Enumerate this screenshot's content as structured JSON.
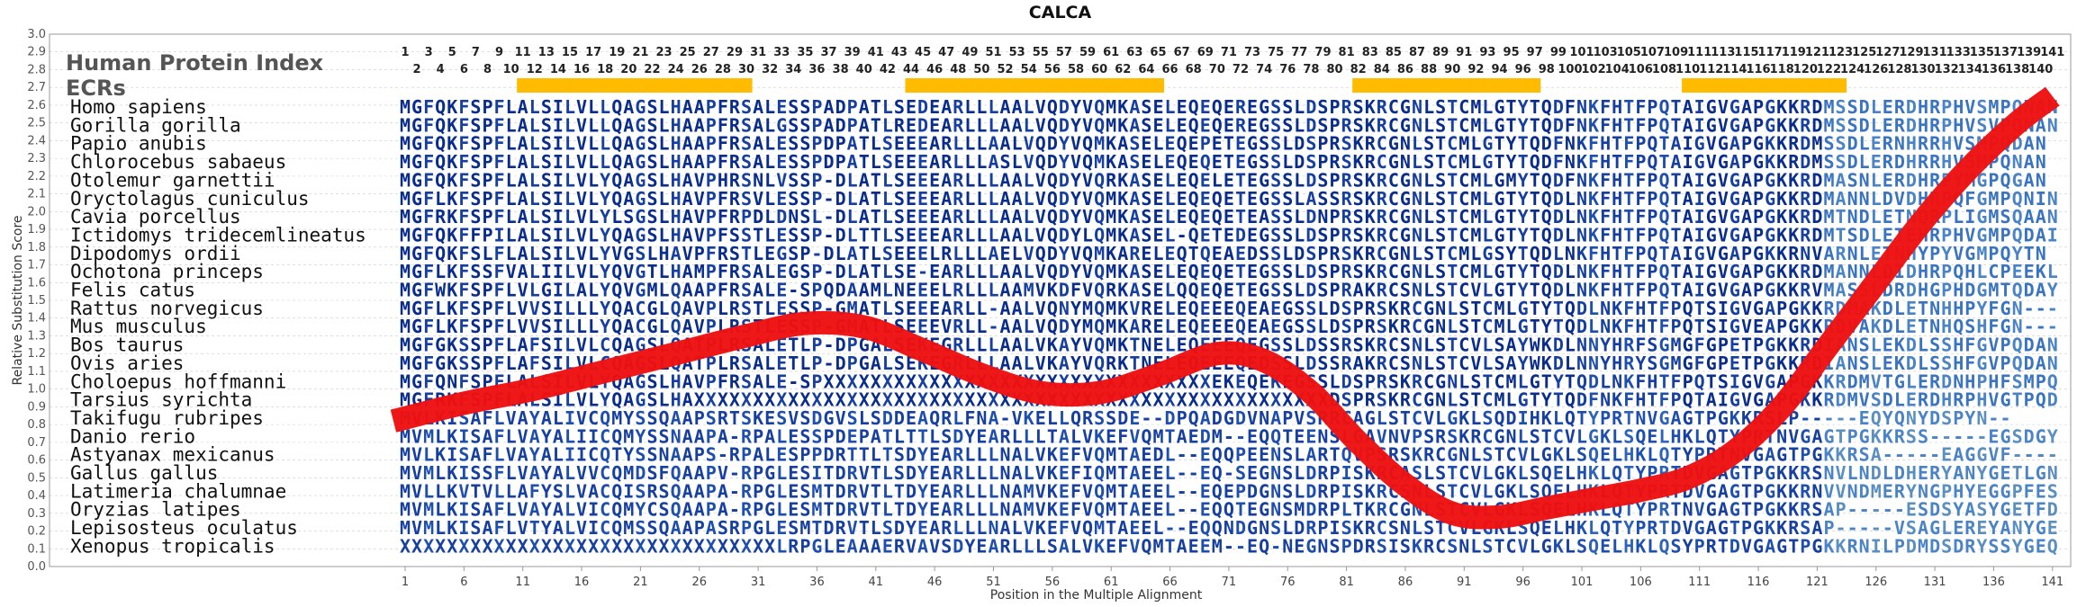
{
  "chart_data": {
    "type": "line",
    "title": "CALCA",
    "xlabel": "Position in the Multiple Alignment",
    "ylabel": "Relative Substitution Score",
    "ylim": [
      0.0,
      3.0
    ],
    "y_ticks": [
      "0.0",
      "0.1",
      "0.2",
      "0.3",
      "0.4",
      "0.5",
      "0.6",
      "0.7",
      "0.8",
      "0.9",
      "1.0",
      "1.1",
      "1.2",
      "1.3",
      "1.4",
      "1.5",
      "1.6",
      "1.7",
      "1.8",
      "1.9",
      "2.0",
      "2.1",
      "2.2",
      "2.3",
      "2.4",
      "2.5",
      "2.6",
      "2.7",
      "2.8",
      "2.9",
      "3.0"
    ],
    "x_ticks": [
      "1",
      "6",
      "11",
      "16",
      "21",
      "26",
      "31",
      "36",
      "41",
      "46",
      "51",
      "56",
      "61",
      "66",
      "71",
      "76",
      "81",
      "86",
      "91",
      "96",
      "101",
      "106",
      "111",
      "116",
      "121",
      "126",
      "131",
      "136",
      "141"
    ],
    "position_labels_top": [
      "1",
      "3",
      "5",
      "7",
      "9",
      "11",
      "13",
      "15",
      "17",
      "19",
      "21",
      "23",
      "25",
      "27",
      "29",
      "31",
      "33",
      "35",
      "37",
      "39",
      "41",
      "43",
      "45",
      "47",
      "49",
      "51",
      "53",
      "55",
      "57",
      "59",
      "61",
      "63",
      "65",
      "67",
      "69",
      "71",
      "73",
      "75",
      "77",
      "79",
      "81",
      "83",
      "85",
      "87",
      "89",
      "91",
      "93",
      "95",
      "97",
      "99",
      "101",
      "103",
      "105",
      "107",
      "109",
      "111",
      "113",
      "115",
      "117",
      "119",
      "121",
      "123",
      "125",
      "127",
      "129",
      "131",
      "133",
      "135",
      "137",
      "139",
      "141"
    ],
    "position_labels_bottom": [
      "2",
      "4",
      "6",
      "8",
      "10",
      "12",
      "14",
      "16",
      "18",
      "20",
      "22",
      "24",
      "26",
      "28",
      "30",
      "32",
      "34",
      "36",
      "38",
      "40",
      "42",
      "44",
      "46",
      "48",
      "50",
      "52",
      "54",
      "56",
      "58",
      "60",
      "62",
      "64",
      "66",
      "68",
      "70",
      "72",
      "74",
      "76",
      "78",
      "80",
      "82",
      "84",
      "86",
      "88",
      "90",
      "92",
      "94",
      "96",
      "98",
      "100",
      "102",
      "104",
      "106",
      "108",
      "110",
      "112",
      "114",
      "116",
      "118",
      "120",
      "122",
      "124",
      "126",
      "128",
      "130",
      "132",
      "134",
      "136",
      "138",
      "140"
    ],
    "track_label": "Human Protein Index",
    "ecr_label": "ECRs",
    "ecrs": [
      [
        11,
        30
      ],
      [
        44,
        65
      ],
      [
        82,
        97
      ],
      [
        110,
        123
      ]
    ],
    "series": [
      {
        "values": [
          {
            "x": 0,
            "y": 0.82
          },
          {
            "x": 6,
            "y": 0.92
          },
          {
            "x": 12,
            "y": 1.0
          },
          {
            "x": 18,
            "y": 1.1
          },
          {
            "x": 24,
            "y": 1.2
          },
          {
            "x": 30,
            "y": 1.3
          },
          {
            "x": 35,
            "y": 1.37
          },
          {
            "x": 40,
            "y": 1.35
          },
          {
            "x": 45,
            "y": 1.22
          },
          {
            "x": 50,
            "y": 1.08
          },
          {
            "x": 55,
            "y": 0.98
          },
          {
            "x": 60,
            "y": 0.98
          },
          {
            "x": 65,
            "y": 1.08
          },
          {
            "x": 70,
            "y": 1.2
          },
          {
            "x": 74,
            "y": 1.16
          },
          {
            "x": 78,
            "y": 0.98
          },
          {
            "x": 82,
            "y": 0.7
          },
          {
            "x": 86,
            "y": 0.46
          },
          {
            "x": 90,
            "y": 0.3
          },
          {
            "x": 94,
            "y": 0.28
          },
          {
            "x": 98,
            "y": 0.33
          },
          {
            "x": 102,
            "y": 0.38
          },
          {
            "x": 106,
            "y": 0.43
          },
          {
            "x": 110,
            "y": 0.5
          },
          {
            "x": 114,
            "y": 0.65
          },
          {
            "x": 118,
            "y": 0.9
          },
          {
            "x": 122,
            "y": 1.25
          },
          {
            "x": 126,
            "y": 1.6
          },
          {
            "x": 130,
            "y": 1.95
          },
          {
            "x": 134,
            "y": 2.25
          },
          {
            "x": 138,
            "y": 2.5
          },
          {
            "x": 141,
            "y": 2.65
          }
        ],
        "color": "#ee1111"
      }
    ],
    "species": [
      "Homo sapiens",
      "Gorilla gorilla",
      "Papio anubis",
      "Chlorocebus sabaeus",
      "Otolemur garnettii",
      "Oryctolagus cuniculus",
      "Cavia porcellus",
      "Ictidomys tridecemlineatus",
      "Dipodomys ordii",
      "Ochotona princeps",
      "Felis catus",
      "Rattus norvegicus",
      "Mus musculus",
      "Bos taurus",
      "Ovis aries",
      "Choloepus hoffmanni",
      "Tarsius syrichta",
      "Takifugu rubripes",
      "Danio rerio",
      "Astyanax mexicanus",
      "Gallus gallus",
      "Latimeria chalumnae",
      "Oryzias latipes",
      "Lepisosteus oculatus",
      "Xenopus tropicalis"
    ],
    "sequences": [
      "MGFQKFSPFLALSILVLLQAGSLHAAPFRSALESSPADPATLSEDEARLLLAALVQDYVQMKASELEQEQEREGSSLDSPRSKRCGNLSTCMLGTYTQDFNKFHTFPQTAIGVGAPGKKRDMSSDLERDHRPHVSMPQNAN",
      "MGFQKFSPFLALSILVLLQAGSLHAAPFRSALGSSPADPATLREDEARLLLAALVQDYVQMKASELEQEQEREGSSLDSPRSKRCGNLSTCMLGTYTQDFNKFHTFPQTAIGVGAPGKKRDMSSDLERDHRPHVSVPQNAN",
      "MGFQKFSPFLALSILVLLQAGSLHAAPFRSALESSPDPATLSEEEARLLLAALVQDYVQMKASELEQEPETEGSSLDSPRSKRCGNLSTCMLGTYTQDFNKFHTFPQTAIGVGAPGKKRDMSSDLERNHRRHVSMPQDAN",
      "MGFQKFSPFLALSILVLLQAGSLHAAPFRSALESSPDPATLSEEEARLLLASLVQDYVQMKASELEQEQETEGSSLDSPRSKRCGNLSTCMLGTYTQDFNKFHTFPQTAIGVGAPGKKRDMSSDLERDHRRHVSMPQNAN",
      "MGFQKFSPFLALSILVLYQAGSLHAVPHRSNLVSSP-DLATLSEEEARLLLAALVQDYVQRKASELEQELETEGSSLDSPRSKRCGNLSTCMLGMYTQDFNKFHTFPQTAIGVGAPGKKRDMASNLERDHRPYMGPQGAN",
      "MGFLKFSPFLALSILVLYQAGSLHAVPFRSVLESSP-DLATLSEEEARLLLAALVQDYVQMKASELEQEQETEGSSLASSRSKRCGNLSTCMLGTYTQDLNKFHTFPQTAIGVGAPGKKRDMANNLDVDHRPQFGMPQNIN",
      "MGFRKFSPFLALSILVLYLSGSLHAVPFRPDLDNSL-DLATLSEEEARLLLAALVQDYVQMKASELEQEQETEASSLDNPRSKRCGNLSTCMLGTYTQDLNKFHTFPQTAIGVGAPGKKRDMTNDLETNQRPLIGMSQAAN",
      "MGFQKFFPILALSILVLYQAGSLHAVPFSSTLESSP-DLTTLSEEEARLLLAALVQDYLQMKASEL-QETEDEGSSLDSPRSKRCGNLSTCMLGTYTQDLNKFHTFPQTAIGVGAPGKKRDMTSDLETEHRPHVGMPQDAI",
      "MGFQKFSLFLALSILVLYVGSLHAVPFRSTLEGSP-DLATLSEEELRLLLAELVQDYVQMKARELEQTQEAEDSSLDSPRSKRCGNLSTCMLGSYTQDLNKFHTFPQTAIGVGAPGKKRNVARNLETNHYPYVGMPQYTN",
      "MGFLKFSSFVALIILVLYQVGTLHAMPFRSALEGSP-DLATLSE-EARLLLAALVQDYVQMKASELEQEQETEGSSLDSPRSKRCGNLSTCMLGTYTQDLNKFHTFPQTAIGVGAPGKKRDMANNLDIDHRPQHLCPEEKL",
      "MGFWKFSPFLVLGILALYQVGMLQAAPFRSALE-SPQDAAMLNEEELRLLLAAMVKDFVQRKASELQQEQETEGSSLDSPRAKRCSNLSTCVLGTYTQDLNKFHTFPQTAIGVGAPGKKRVMASSLDRDHGPHDGMTQDAY",
      "MGFLKFSPFLVVSILLLYQACGLQAVPLRSTLESSP-GMATLSEEEARLL-AALVQNYMQMKVRELEQEEEQEAEGSSLDSPRSKRCGNLSTCMLGTYTQDLNKFHTFPQTSIGVGAPGKKRDMAKDLETNHHPYFGN----",
      "MGFLKFSPFLVVSILLLYQACGLQAVPLRSTLESSP-GMATLSEEEVRLL-AALVQDYMQMKARELEQEEEQEAEGSSLDSPRSKRCGNLSTCMLGTYTQDLNKFHTFPQTSIGVEAPGKKRDVAKDLETNHQSHFGN----",
      "MGFGKSSPFLAFSILVLCQAGSLQATPLRSALETLP-DPGALSEKEGRLLLAALVKAYVQMKTNELEQEEEQEGSSLDSSRSKRCSNLSTCVLSAYWKDLNNYHRFSGMGFGPETPGKKRDIANSLEKDLSSHFGVPQDAN",
      "MGFGKSSPFLAFSILVLCQAGSLQATPLRSALETLP-DPGALSEKEGRLLLAALVKAYVQRKTNELEQEEEQEDSSLDSSRAKRCSNLSTCVLSAYWKDLNNYHRYSGMGFGPETPGKKRDIANSLEKDLSSHFGVPQDAN",
      "MGFQNFSPFLALSILVLYQAGSLHAVPFRSALE-SPXXXXXXXXXXXXXXXXXXXXXXXXXXXXXXXXXEKEQEKEGSSLDSPRSKRCGNLSTCMLGTYTQDLNKFHTFPQTSIGVGAPGKKRDMVTGLERDNHPHFSMPQDAS",
      "MGFRKFSPFLALSILVLYQAGSLHAXXXXXXXXXXXXXXXXXXXXXXXXXXXXXXXXXXXXXXXXXXXXXXXXXXXXXXDSPRSKRCGNLSTCMLGTYTQDFNKFHTFPQTAIGVGAPGKKRDMVSDLERDHRPHVGTPQDAN",
      "MVLKISAFLVAYALIVCQMYSSQAAPSRTSKESVSDGVSLSDDEAQRLFNA-VKELLQRSSDE--DPQADGDVNAPVSRRCAGLSTCVLGKLSQDIHKLQTYPRTNVGAGTPGKKRSLP-----EQYQNYDSPYN--",
      "MVMLKISAFLVAYALIICQMYSSNAAPA-RPALESSPDEPATLTTLSDYEARLLLTALVKEFVQMTAEDM--EQQTEENSLGAVNVPSRSKRCGNLSTCVLGKLSQELHKLQTYPRTNVGAGTPGKKRSS-----EGSDGYGEALGRV",
      "MVLKISAFLVAYALIICQTYSSNAAPS-RPALESPPDRTTLTSDYEARLLLNALVKEFVQMTAEDL--EQQPEENSLARTQVPSRSKRCGNLSTCVLGKLSQELHKLQTYPRTNVGAGTPGKKRSA-----EAGGVF-------",
      "MVMLKISSFLVAYALVVCQMDSFQAAPV-RPGLESITDRVTLSDYEARLLLNALVKEFIQMTAEEL--EQ-SEGNSLDRPISKRCASLSTCVLGKLSQELHKLQTYPRTDVGAGTPGKKRSNVLNDLDHERYANYGETLGNN",
      "MVLLKVTVLLAFYSLVACQISRSQAAPA-RPGLESMTDRVTLTDYEARLLLNAMVKEFVQMTAEEL--EQEPDGNSLDRPISKRCSNLSTCVLGKLSQELHKLQTYPRTDVGAGTPGKKRNVVNDMERYNGPHYEGGPFESN",
      "MVMLKISAFLVAYALVICQMYCSQAAPA-RPGLESMTDRVTLTDYEARLLLNAMVKEFVQMTAEEL--EQQTEGNSMDRPLTKRCGNLSTCVLGKLSQELHKLQTYPRTNVGAGTPGKKRSAP-----ESDSYASYGETFDSI",
      "MVMLKISAFLVTYALVICQMSSQAAPASRPGLESMTDRVTLSDYEARLLLNALVKEFVQMTAEEL--EQQNDGNSLDRPISKRCSNLSTCVLGKLSQELHKLQTYPRTDVGAGTPGKKRSAP-----VSAGLEREYANYGETFDSI",
      "XXXXXXXXXXXXXXXXXXXXXXXXXXXXXXXXLRPGLEAAAERVAVSDYEARLLLSALVKEFVQMTAEEM--EQ-NEGNSPDRSISKRCSNLSTCVLGKLSQELHKLQSYPRTDVGAGTPGKKRNILPDMDSDRYSSYGEQFEHN"
    ]
  },
  "colors": {
    "line": "#ee1111",
    "ecr": "#ffbb00",
    "grid": "#cccccc"
  }
}
